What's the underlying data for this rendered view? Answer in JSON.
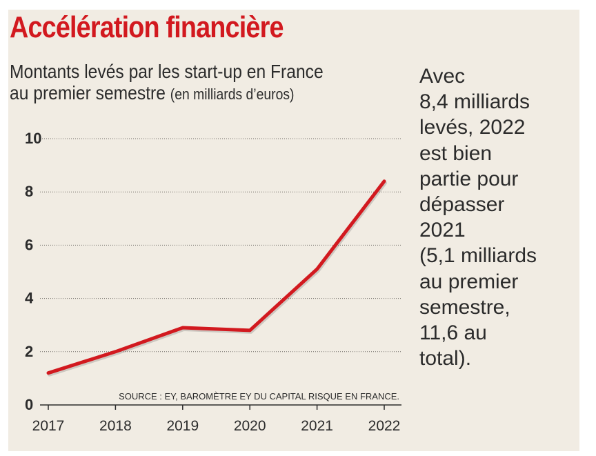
{
  "title": "Accélération financière",
  "subtitle_line1": "Montants levés par les start-up en France",
  "subtitle_line2": "au premier semestre",
  "subtitle_unit": "(en milliards d’euros)",
  "annotation_lines": [
    "Avec",
    "8,4 milliards",
    "levés, 2022",
    "est bien",
    "partie pour",
    "dépasser",
    "2021",
    "(5,1 milliards",
    "au premier",
    "semestre,",
    "11,6 au",
    "total)."
  ],
  "source": "SOURCE : EY, BAROMÈTRE EY DU CAPITAL RISQUE EN FRANCE.",
  "colors": {
    "accent": "#d2191f",
    "background": "#f1ece3",
    "text": "#2b2b2b"
  },
  "chart_data": {
    "type": "line",
    "categories": [
      "2017",
      "2018",
      "2019",
      "2020",
      "2021",
      "2022"
    ],
    "series": [
      {
        "values": [
          1.2,
          2.0,
          2.9,
          2.8,
          5.1,
          8.4
        ]
      }
    ],
    "yticks": [
      "0",
      "2",
      "4",
      "6",
      "8",
      "10"
    ],
    "ylim": [
      0,
      10
    ],
    "grid": "horizontal dotted",
    "line_color": "#d2191f"
  }
}
